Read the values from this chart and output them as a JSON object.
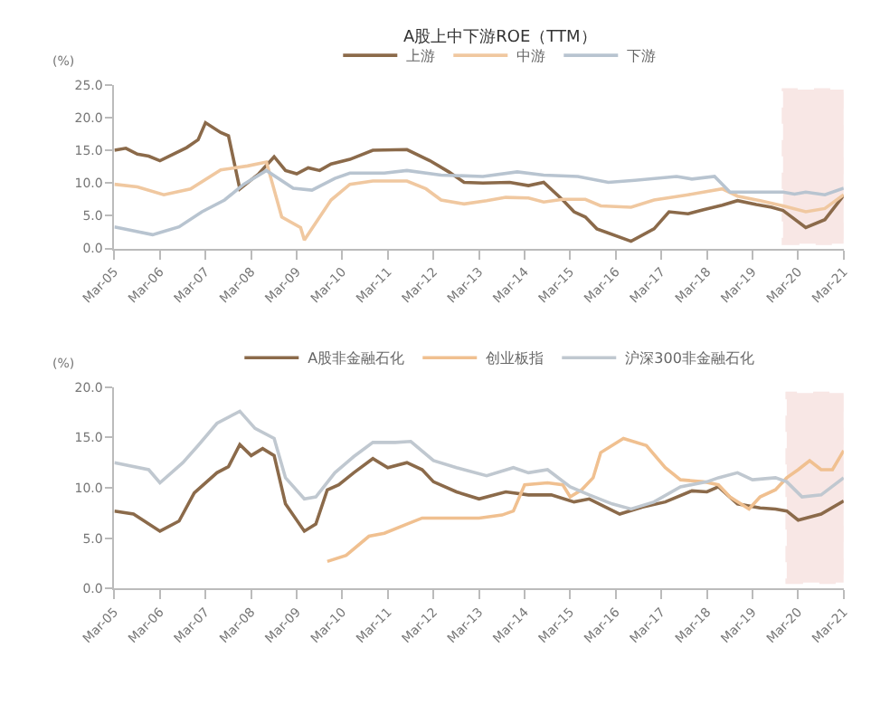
{
  "chart_data": [
    {
      "type": "line",
      "title": "A股上中下游ROE（TTM）",
      "ylabel": "(%)",
      "ylim": [
        0,
        25
      ],
      "yticks": [
        {
          "value": 0,
          "label": "0.0"
        },
        {
          "value": 5,
          "label": "5.0"
        },
        {
          "value": 10,
          "label": "10.0"
        },
        {
          "value": 15,
          "label": "15.0"
        },
        {
          "value": 20,
          "label": "20.0"
        },
        {
          "value": 25,
          "label": "25.0"
        }
      ],
      "xlim": [
        "2005-03",
        "2021-03"
      ],
      "xticks": [
        {
          "value": "2005-03",
          "label": "Mar-05"
        },
        {
          "value": "2006-03",
          "label": "Mar-06"
        },
        {
          "value": "2007-03",
          "label": "Mar-07"
        },
        {
          "value": "2008-03",
          "label": "Mar-08"
        },
        {
          "value": "2009-03",
          "label": "Mar-09"
        },
        {
          "value": "2010-03",
          "label": "Mar-10"
        },
        {
          "value": "2011-03",
          "label": "Mar-11"
        },
        {
          "value": "2012-03",
          "label": "Mar-12"
        },
        {
          "value": "2013-03",
          "label": "Mar-13"
        },
        {
          "value": "2014-03",
          "label": "Mar-14"
        },
        {
          "value": "2015-03",
          "label": "Mar-15"
        },
        {
          "value": "2016-03",
          "label": "Mar-16"
        },
        {
          "value": "2017-03",
          "label": "Mar-17"
        },
        {
          "value": "2018-03",
          "label": "Mar-18"
        },
        {
          "value": "2019-03",
          "label": "Mar-19"
        },
        {
          "value": "2020-03",
          "label": "Mar-20"
        },
        {
          "value": "2021-03",
          "label": "Mar-21"
        }
      ],
      "grid": false,
      "legend": "top",
      "marker": "none",
      "line_style": "solid",
      "bands": [
        {
          "axis": "x",
          "from": "2019-11",
          "to": "2021-03",
          "color": "#c0392b"
        }
      ],
      "series": [
        {
          "name": "上游",
          "color": "#8b6a4a",
          "x": [
            "2005-03",
            "2005-06",
            "2005-09",
            "2005-12",
            "2006-03",
            "2006-10",
            "2007-01",
            "2007-03",
            "2007-07",
            "2007-09",
            "2007-12",
            "2008-05",
            "2008-09",
            "2008-12",
            "2009-03",
            "2009-06",
            "2009-09",
            "2009-12",
            "2010-05",
            "2010-11",
            "2011-08",
            "2012-02",
            "2012-07",
            "2012-11",
            "2013-04",
            "2013-11",
            "2014-04",
            "2014-08",
            "2015-01",
            "2015-04",
            "2015-07",
            "2015-10",
            "2016-07",
            "2017-01",
            "2017-05",
            "2017-10",
            "2018-02",
            "2018-07",
            "2018-11",
            "2019-04",
            "2019-08",
            "2019-11",
            "2020-05",
            "2020-10",
            "2021-03"
          ],
          "values": [
            15.0,
            15.3,
            14.4,
            14.1,
            13.4,
            15.4,
            16.6,
            19.2,
            17.7,
            17.2,
            9.1,
            11.4,
            14.0,
            11.9,
            11.4,
            12.3,
            11.9,
            12.9,
            13.6,
            15.0,
            15.1,
            13.4,
            11.7,
            10.1,
            10.0,
            10.1,
            9.6,
            10.1,
            7.4,
            5.6,
            4.8,
            3.0,
            1.1,
            3.0,
            5.6,
            5.3,
            5.9,
            6.6,
            7.3,
            6.7,
            6.3,
            5.8,
            3.2,
            4.4,
            8.1
          ]
        },
        {
          "name": "中游",
          "color": "#f0c8a0",
          "x": [
            "2005-03",
            "2005-09",
            "2006-04",
            "2006-11",
            "2007-07",
            "2008-02",
            "2008-07",
            "2008-11",
            "2009-04",
            "2009-05",
            "2009-12",
            "2010-05",
            "2010-11",
            "2011-08",
            "2012-01",
            "2012-05",
            "2012-11",
            "2013-05",
            "2013-10",
            "2014-04",
            "2014-08",
            "2015-01",
            "2015-07",
            "2015-11",
            "2016-07",
            "2017-01",
            "2017-10",
            "2018-07",
            "2018-11",
            "2019-05",
            "2019-11",
            "2020-05",
            "2020-10",
            "2021-03"
          ],
          "values": [
            9.8,
            9.4,
            8.2,
            9.1,
            12.0,
            12.6,
            13.2,
            4.8,
            3.2,
            1.3,
            7.4,
            9.8,
            10.3,
            10.3,
            9.1,
            7.4,
            6.8,
            7.3,
            7.8,
            7.7,
            7.1,
            7.5,
            7.5,
            6.5,
            6.3,
            7.4,
            8.2,
            9.1,
            8.0,
            7.3,
            6.5,
            5.6,
            6.1,
            8.2
          ]
        },
        {
          "name": "下游",
          "color": "#b8c4d0",
          "x": [
            "2005-03",
            "2006-01",
            "2006-08",
            "2007-02",
            "2007-08",
            "2008-01",
            "2008-07",
            "2009-02",
            "2009-07",
            "2010-01",
            "2010-05",
            "2011-02",
            "2011-08",
            "2012-05",
            "2013-04",
            "2014-01",
            "2014-08",
            "2015-05",
            "2016-01",
            "2016-08",
            "2017-07",
            "2017-11",
            "2018-05",
            "2018-09",
            "2019-07",
            "2019-11",
            "2020-02",
            "2020-05",
            "2020-10",
            "2021-03"
          ],
          "values": [
            3.3,
            2.1,
            3.3,
            5.6,
            7.4,
            9.8,
            11.9,
            9.2,
            8.9,
            10.7,
            11.5,
            11.5,
            11.9,
            11.2,
            11.0,
            11.7,
            11.2,
            11.0,
            10.1,
            10.4,
            11.0,
            10.6,
            11.0,
            8.6,
            8.6,
            8.6,
            8.3,
            8.6,
            8.2,
            9.2
          ]
        }
      ]
    },
    {
      "type": "line",
      "ylabel": "(%)",
      "ylim": [
        0,
        20
      ],
      "yticks": [
        {
          "value": 0,
          "label": "0.0"
        },
        {
          "value": 5,
          "label": "5.0"
        },
        {
          "value": 10,
          "label": "10.0"
        },
        {
          "value": 15,
          "label": "15.0"
        },
        {
          "value": 20,
          "label": "20.0"
        }
      ],
      "xlim": [
        "2005-03",
        "2021-03"
      ],
      "xticks": [
        {
          "value": "2005-03",
          "label": "Mar-05"
        },
        {
          "value": "2006-03",
          "label": "Mar-06"
        },
        {
          "value": "2007-03",
          "label": "Mar-07"
        },
        {
          "value": "2008-03",
          "label": "Mar-08"
        },
        {
          "value": "2009-03",
          "label": "Mar-09"
        },
        {
          "value": "2010-03",
          "label": "Mar-10"
        },
        {
          "value": "2011-03",
          "label": "Mar-11"
        },
        {
          "value": "2012-03",
          "label": "Mar-12"
        },
        {
          "value": "2013-03",
          "label": "Mar-13"
        },
        {
          "value": "2014-03",
          "label": "Mar-14"
        },
        {
          "value": "2015-03",
          "label": "Mar-15"
        },
        {
          "value": "2016-03",
          "label": "Mar-16"
        },
        {
          "value": "2017-03",
          "label": "Mar-17"
        },
        {
          "value": "2018-03",
          "label": "Mar-18"
        },
        {
          "value": "2019-03",
          "label": "Mar-19"
        },
        {
          "value": "2020-03",
          "label": "Mar-20"
        },
        {
          "value": "2021-03",
          "label": "Mar-21"
        }
      ],
      "grid": false,
      "legend": "top",
      "marker": "none",
      "line_style": "solid",
      "bands": [
        {
          "axis": "x",
          "from": "2019-12",
          "to": "2021-03",
          "color": "#c0392b"
        }
      ],
      "series": [
        {
          "name": "A股非金融石化",
          "color": "#8b6a4a",
          "x": [
            "2005-03",
            "2005-08",
            "2006-03",
            "2006-08",
            "2006-12",
            "2007-06",
            "2007-09",
            "2007-12",
            "2008-03",
            "2008-06",
            "2008-09",
            "2008-12",
            "2009-05",
            "2009-08",
            "2009-11",
            "2010-02",
            "2010-06",
            "2010-11",
            "2011-03",
            "2011-08",
            "2011-12",
            "2012-03",
            "2012-09",
            "2013-03",
            "2013-10",
            "2014-04",
            "2014-10",
            "2015-04",
            "2015-08",
            "2016-04",
            "2016-10",
            "2017-04",
            "2017-11",
            "2018-03",
            "2018-06",
            "2018-11",
            "2019-05",
            "2019-09",
            "2019-12",
            "2020-03",
            "2020-09",
            "2021-03"
          ],
          "values": [
            7.7,
            7.4,
            5.7,
            6.7,
            9.5,
            11.5,
            12.1,
            14.3,
            13.2,
            13.9,
            13.2,
            8.4,
            5.7,
            6.4,
            9.8,
            10.3,
            11.5,
            12.9,
            12.0,
            12.5,
            11.8,
            10.6,
            9.6,
            8.9,
            9.6,
            9.3,
            9.3,
            8.6,
            8.9,
            7.4,
            8.1,
            8.6,
            9.7,
            9.6,
            10.1,
            8.4,
            8.0,
            7.9,
            7.7,
            6.8,
            7.4,
            8.7
          ]
        },
        {
          "name": "创业板指",
          "color": "#f0c090",
          "x": [
            "2009-11",
            "2010-04",
            "2010-10",
            "2011-02",
            "2011-08",
            "2011-12",
            "2012-08",
            "2013-03",
            "2013-09",
            "2013-12",
            "2014-03",
            "2014-09",
            "2015-01",
            "2015-03",
            "2015-06",
            "2015-09",
            "2015-11",
            "2016-05",
            "2016-11",
            "2017-04",
            "2017-08",
            "2018-02",
            "2018-06",
            "2018-09",
            "2019-02",
            "2019-05",
            "2019-09",
            "2019-12",
            "2020-03",
            "2020-06",
            "2020-09",
            "2020-12",
            "2021-03"
          ],
          "values": [
            2.7,
            3.3,
            5.2,
            5.5,
            6.4,
            7.0,
            7.0,
            7.0,
            7.3,
            7.7,
            10.3,
            10.5,
            10.3,
            9.1,
            9.8,
            11.0,
            13.5,
            14.9,
            14.2,
            12.0,
            10.8,
            10.6,
            10.3,
            9.1,
            7.9,
            9.1,
            9.8,
            11.0,
            11.8,
            12.7,
            11.8,
            11.8,
            13.7
          ]
        },
        {
          "name": "沪深300非金融石化",
          "color": "#c0c8d0",
          "x": [
            "2005-03",
            "2005-12",
            "2006-03",
            "2006-09",
            "2007-01",
            "2007-06",
            "2007-12",
            "2008-04",
            "2008-09",
            "2008-12",
            "2009-05",
            "2009-08",
            "2010-01",
            "2010-06",
            "2010-11",
            "2011-05",
            "2011-09",
            "2012-03",
            "2012-09",
            "2013-05",
            "2013-12",
            "2014-04",
            "2014-09",
            "2015-03",
            "2015-08",
            "2016-02",
            "2016-07",
            "2017-01",
            "2017-08",
            "2018-03",
            "2018-06",
            "2018-11",
            "2019-03",
            "2019-09",
            "2019-12",
            "2020-04",
            "2020-09",
            "2021-03"
          ],
          "values": [
            12.5,
            11.8,
            10.5,
            12.5,
            14.2,
            16.4,
            17.6,
            15.9,
            14.9,
            11.0,
            8.9,
            9.1,
            11.5,
            13.1,
            14.5,
            14.5,
            14.6,
            12.7,
            12.0,
            11.2,
            12.0,
            11.5,
            11.8,
            10.1,
            9.3,
            8.4,
            7.9,
            8.6,
            10.1,
            10.6,
            11.0,
            11.5,
            10.8,
            11.0,
            10.6,
            9.1,
            9.3,
            11.0
          ]
        }
      ]
    }
  ]
}
